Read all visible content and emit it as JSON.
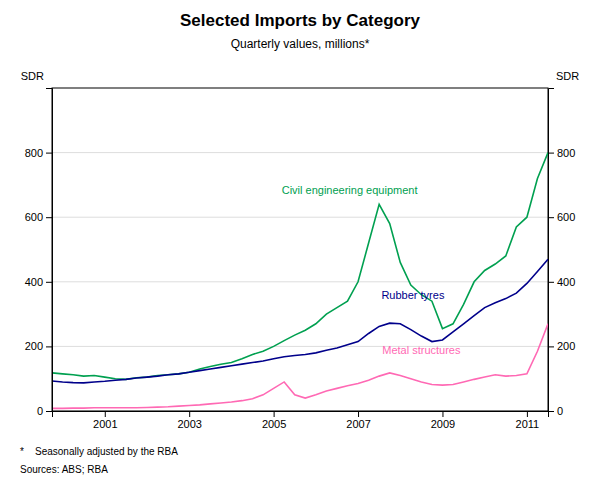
{
  "chart_data": {
    "type": "line",
    "title": "Selected Imports by Category",
    "subtitle": "Quarterly values, millions*",
    "y_label": "SDR",
    "y2_label": "SDR",
    "footnotes": [
      "*    Seasonally adjusted by the RBA",
      "Sources: ABS; RBA"
    ],
    "grid": true,
    "xlim": [
      1999.75,
      2011.5
    ],
    "xticks": [
      2001,
      2003,
      2005,
      2007,
      2009,
      2011
    ],
    "ylim": [
      0,
      1000
    ],
    "yticks": [
      0,
      200,
      400,
      600,
      800
    ],
    "y2lim": [
      0,
      1000
    ],
    "y2ticks": [
      0,
      200,
      400,
      600,
      800
    ],
    "x": [
      1999.75,
      2000.0,
      2000.25,
      2000.5,
      2000.75,
      2001.0,
      2001.25,
      2001.5,
      2001.75,
      2002.0,
      2002.25,
      2002.5,
      2002.75,
      2003.0,
      2003.25,
      2003.5,
      2003.75,
      2004.0,
      2004.25,
      2004.5,
      2004.75,
      2005.0,
      2005.25,
      2005.5,
      2005.75,
      2006.0,
      2006.25,
      2006.5,
      2006.75,
      2007.0,
      2007.25,
      2007.5,
      2007.75,
      2008.0,
      2008.25,
      2008.5,
      2008.75,
      2009.0,
      2009.25,
      2009.5,
      2009.75,
      2010.0,
      2010.25,
      2010.5,
      2010.75,
      2011.0,
      2011.25,
      2011.5
    ],
    "series": [
      {
        "color": "#00a050",
        "values": [
          118,
          115,
          112,
          108,
          110,
          105,
          100,
          98,
          103,
          105,
          110,
          112,
          115,
          120,
          130,
          138,
          145,
          150,
          162,
          175,
          185,
          200,
          218,
          235,
          250,
          270,
          300,
          320,
          340,
          400,
          520,
          640,
          580,
          460,
          390,
          360,
          340,
          255,
          270,
          330,
          400,
          435,
          455,
          480,
          570,
          600,
          720,
          800
        ]
      },
      {
        "color": "#00008b",
        "values": [
          93,
          90,
          88,
          87,
          90,
          92,
          95,
          98,
          102,
          105,
          108,
          112,
          115,
          120,
          125,
          130,
          135,
          140,
          145,
          150,
          155,
          162,
          168,
          172,
          175,
          180,
          188,
          195,
          205,
          215,
          240,
          262,
          272,
          270,
          252,
          232,
          215,
          220,
          245,
          270,
          295,
          320,
          335,
          348,
          365,
          395,
          432,
          470
        ]
      },
      {
        "color": "#ff69b4",
        "values": [
          8,
          8,
          9,
          9,
          10,
          10,
          10,
          10,
          10,
          11,
          12,
          13,
          15,
          17,
          19,
          22,
          25,
          28,
          32,
          38,
          50,
          70,
          90,
          50,
          40,
          50,
          62,
          70,
          78,
          85,
          95,
          108,
          118,
          110,
          100,
          90,
          82,
          80,
          82,
          90,
          98,
          105,
          112,
          108,
          110,
          115,
          185,
          270
        ]
      }
    ],
    "annotations": [
      {
        "text": "Civil engineering equipment",
        "x": 2006.8,
        "y": 680,
        "color": "#00a050"
      },
      {
        "text": "Rubber tyres",
        "x": 2008.3,
        "y": 355,
        "color": "#00008b"
      },
      {
        "text": "Metal structures",
        "x": 2008.5,
        "y": 185,
        "color": "#ff69b4"
      }
    ]
  }
}
